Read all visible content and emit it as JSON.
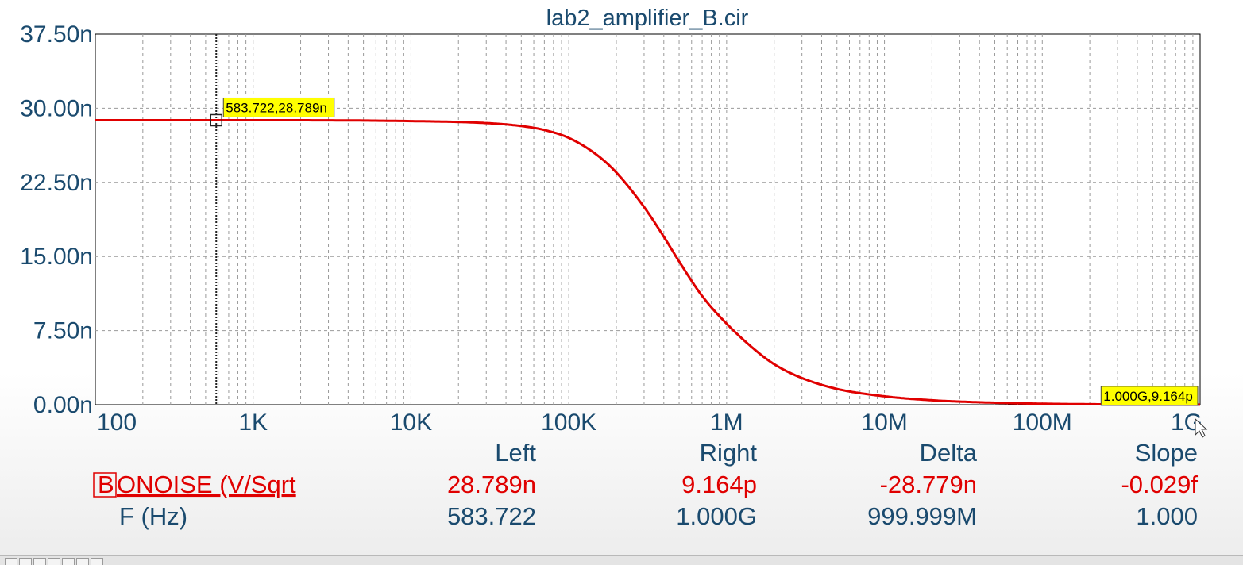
{
  "chart_data": {
    "type": "line",
    "title": "lab2_amplifier_B.cir",
    "x_scale": "log",
    "xlim": [
      100,
      1000000000
    ],
    "ylim": [
      0,
      37.5
    ],
    "y_unit": "n",
    "grid": true,
    "x_ticks": [
      {
        "value": 100,
        "label": "100"
      },
      {
        "value": 1000,
        "label": "1K"
      },
      {
        "value": 10000,
        "label": "10K"
      },
      {
        "value": 100000,
        "label": "100K"
      },
      {
        "value": 1000000,
        "label": "1M"
      },
      {
        "value": 10000000,
        "label": "10M"
      },
      {
        "value": 100000000,
        "label": "100M"
      },
      {
        "value": 1000000000,
        "label": "1G"
      }
    ],
    "y_ticks": [
      {
        "value": 0,
        "label": "0.00n"
      },
      {
        "value": 7.5,
        "label": "7.50n"
      },
      {
        "value": 15,
        "label": "15.00n"
      },
      {
        "value": 22.5,
        "label": "22.50n"
      },
      {
        "value": 30,
        "label": "30.00n"
      },
      {
        "value": 37.5,
        "label": "37.50n"
      }
    ],
    "series": [
      {
        "name": "ONOISE (V/Sqrt",
        "color": "#e00000",
        "x": [
          100,
          1000,
          10000,
          30000,
          50000,
          70000,
          100000,
          150000,
          200000,
          300000,
          400000,
          500000,
          700000,
          1000000,
          1500000,
          2000000,
          3000000,
          5000000,
          10000000,
          20000000,
          50000000,
          100000000,
          300000000,
          1000000000
        ],
        "y": [
          28.789,
          28.789,
          28.7,
          28.5,
          28.2,
          27.8,
          27.0,
          25.3,
          23.5,
          20.0,
          17.0,
          14.5,
          11.0,
          8.2,
          5.6,
          4.1,
          2.7,
          1.6,
          0.85,
          0.45,
          0.2,
          0.1,
          0.03,
          0.009
        ]
      }
    ],
    "annotations": [
      {
        "label": "583.722,28.789n",
        "x": 583.722,
        "y": 28.789
      },
      {
        "label": "1.000G,9.164p",
        "x": 1000000000,
        "y": 0.009164
      }
    ],
    "cursor_x": 583.722
  },
  "readout": {
    "headers": {
      "left": "Left",
      "right": "Right",
      "delta": "Delta",
      "slope": "Slope"
    },
    "rows": [
      {
        "trace_id": "B",
        "label": "ONOISE (V/Sqrt",
        "left": "28.789n",
        "right": "9.164p",
        "delta": "-28.779n",
        "slope": "-0.029f",
        "color": "#e00000"
      },
      {
        "trace_id": "",
        "label": "F (Hz)",
        "left": "583.722",
        "right": "1.000G",
        "delta": "999.999M",
        "slope": "1.000",
        "color": "#103a5a"
      }
    ]
  },
  "colors": {
    "axis_text": "#1a4a6e",
    "grid": "#9a9a9a",
    "annotation_bg": "#ffff00",
    "trace": "#e00000"
  }
}
